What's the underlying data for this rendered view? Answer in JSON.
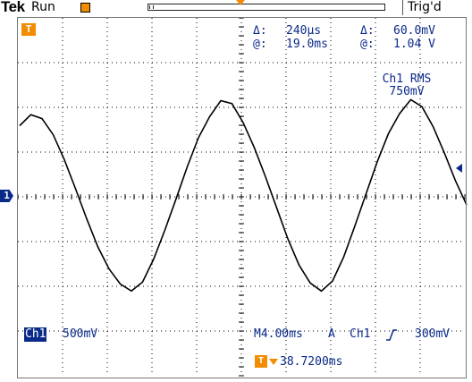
{
  "header": {
    "brand": "Tek",
    "run_state": "Run",
    "trigger_state": "Trig'd"
  },
  "measurements": {
    "delta_time_label": "Δ:",
    "delta_time": "240µs",
    "delta_volt_label": "Δ:",
    "delta_volt": "60.0mV",
    "at_time_label": "@:",
    "at_time": "19.0ms",
    "at_volt_label": "@:",
    "at_volt": "1.04 V",
    "rms_title": "Ch1 RMS",
    "rms_value": "750mV"
  },
  "channel": {
    "marker": "1",
    "badge": "Ch1",
    "scale": "500mV"
  },
  "timebase": {
    "horizontal": "M4.00ms",
    "trigger_mode": "A",
    "trigger_source": "Ch1",
    "trigger_level": "300mV",
    "trigger_position": "38.7200ms"
  },
  "trigger_marker": "T",
  "colors": {
    "accent": "#f28c00",
    "readout": "#0a2a8a",
    "trace": "#000000"
  },
  "chart_data": {
    "type": "line",
    "series": [
      {
        "x": [
          0,
          1,
          2,
          3,
          4,
          5,
          6,
          7,
          8,
          9,
          10,
          11,
          12,
          13,
          14,
          15,
          16,
          17,
          18,
          19,
          20,
          21,
          22,
          23,
          24,
          25,
          26,
          27,
          28,
          29,
          30,
          31,
          32,
          33,
          34,
          35,
          36,
          37,
          38,
          39,
          40
        ],
        "y": [
          0.71,
          0.82,
          0.78,
          0.62,
          0.37,
          0.08,
          -0.22,
          -0.5,
          -0.72,
          -0.87,
          -0.94,
          -0.85,
          -0.62,
          -0.33,
          -0.02,
          0.3,
          0.59,
          0.8,
          0.96,
          0.93,
          0.74,
          0.49,
          0.2,
          -0.11,
          -0.42,
          -0.68,
          -0.86,
          -0.94,
          -0.84,
          -0.6,
          -0.29,
          0.03,
          0.35,
          0.63,
          0.83,
          0.97,
          0.9,
          0.7,
          0.44,
          0.16,
          -0.08
        ]
      }
    ]
  }
}
